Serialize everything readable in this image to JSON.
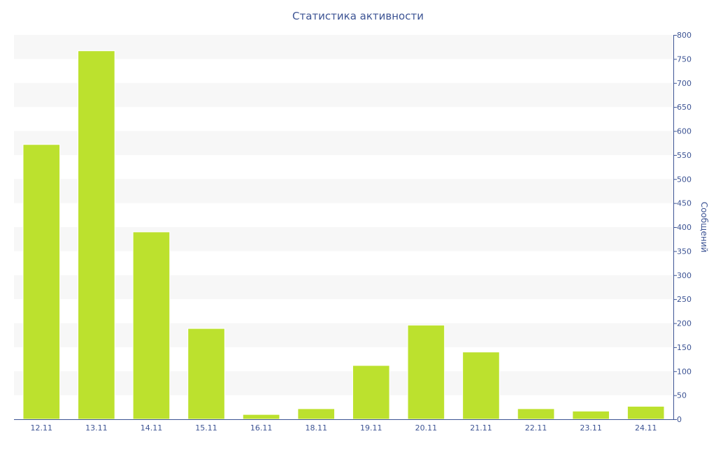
{
  "chart_data": {
    "type": "bar",
    "title": "Статистика активности",
    "xlabel": "",
    "ylabel": "Сообщений",
    "categories": [
      "12.11",
      "13.11",
      "14.11",
      "15.11",
      "16.11",
      "18.11",
      "19.11",
      "20.11",
      "21.11",
      "22.11",
      "23.11",
      "24.11"
    ],
    "values": [
      572,
      767,
      390,
      189,
      10,
      22,
      112,
      196,
      140,
      22,
      17,
      27
    ],
    "ylim": [
      0,
      800
    ],
    "yticks": [
      0,
      50,
      100,
      150,
      200,
      250,
      300,
      350,
      400,
      450,
      500,
      550,
      600,
      650,
      700,
      750,
      800
    ],
    "y_axis_side": "right",
    "grid": "alternating horizontal bands",
    "legend": "none",
    "colors": {
      "bar": "#bce12e",
      "band": "#f7f7f7",
      "text": "#3d5494",
      "axis": "#3d5494"
    }
  }
}
